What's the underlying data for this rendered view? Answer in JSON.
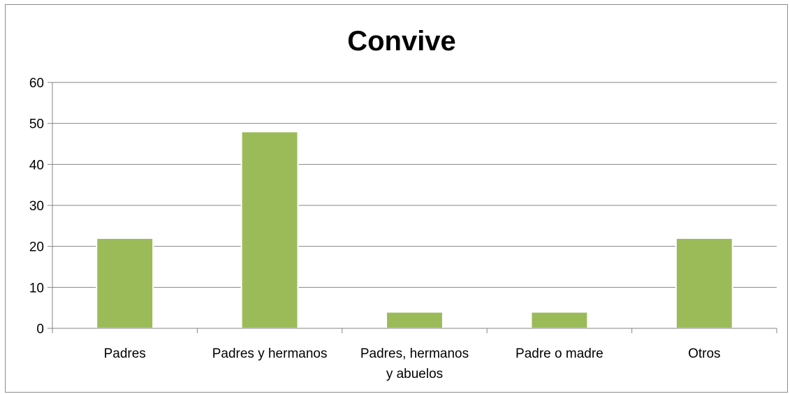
{
  "chart_data": {
    "type": "bar",
    "title": "Convive",
    "xlabel": "",
    "ylabel": "",
    "categories": [
      [
        "Padres"
      ],
      [
        "Padres y hermanos"
      ],
      [
        "Padres, hermanos",
        "y abuelos"
      ],
      [
        "Padre o madre"
      ],
      [
        "Otros"
      ]
    ],
    "values": [
      22,
      48,
      4,
      4,
      22
    ],
    "ylim": [
      0,
      60
    ],
    "yticks": [
      0,
      10,
      20,
      30,
      40,
      50,
      60
    ],
    "grid": true,
    "legend": "none",
    "bar_color": "#9bbb59"
  }
}
